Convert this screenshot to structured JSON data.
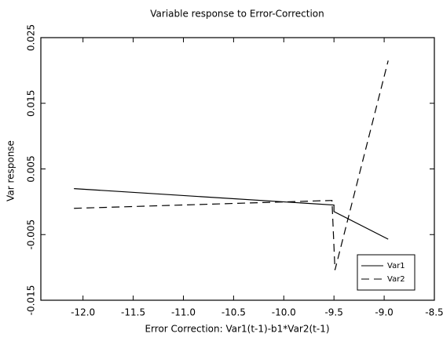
{
  "chart_data": {
    "type": "line",
    "title": "Variable response to Error-Correction",
    "xlabel": "Error Correction: Var1(t-1)-b1*Var2(t-1)",
    "ylabel": "Var response",
    "xlim": [
      -12.42,
      -8.5
    ],
    "ylim": [
      -0.015,
      0.025
    ],
    "xticks": [
      {
        "value": -12,
        "label": "-12.0"
      },
      -11.5,
      {
        "value": -11,
        "label": "-11.0"
      },
      -10.5,
      {
        "value": -10,
        "label": "-10.0"
      },
      -9.5,
      {
        "value": -9,
        "label": "-9.0"
      },
      -8.5
    ],
    "yticks": [
      -0.015,
      -0.005,
      0.005,
      0.015,
      0.025
    ],
    "legend": "lower right",
    "series": [
      {
        "name": "Var1",
        "color": "#000000",
        "dash": "solid",
        "x": [
          -12.09,
          -9.5,
          -9.5,
          -8.96
        ],
        "values": [
          0.002,
          -0.0005,
          -0.0015,
          -0.0057
        ]
      },
      {
        "name": "Var2",
        "color": "#000000",
        "dash": "dashed",
        "x": [
          -12.09,
          -9.52,
          -9.49,
          -8.96
        ],
        "values": [
          -0.001,
          0.0002,
          -0.0104,
          0.0215
        ]
      }
    ]
  }
}
